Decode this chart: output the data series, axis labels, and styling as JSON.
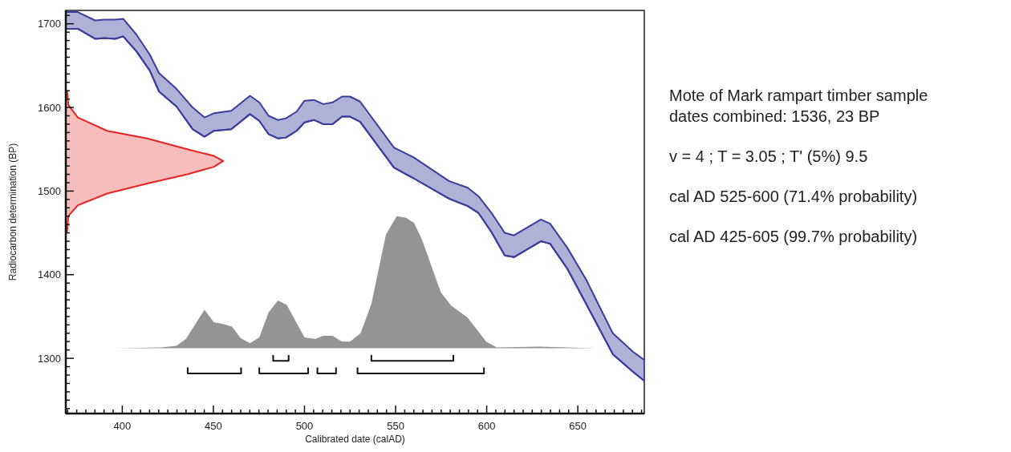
{
  "chart_data": {
    "type": "line",
    "xlabel": "Calibrated date (calAD)",
    "ylabel": "Radiocarbon determination (BP)",
    "xlim": [
      369,
      686.5
    ],
    "ylim": [
      1234,
      1716
    ],
    "xticks": [
      {
        "value": 370,
        "label": null
      },
      {
        "value": 375,
        "label": null
      },
      {
        "value": 380,
        "label": null
      },
      {
        "value": 385,
        "label": null
      },
      {
        "value": 390,
        "label": null
      },
      {
        "value": 395,
        "label": null
      },
      400,
      {
        "value": 405,
        "label": null
      },
      {
        "value": 410,
        "label": null
      },
      {
        "value": 415,
        "label": null
      },
      {
        "value": 420,
        "label": null
      },
      {
        "value": 425,
        "label": null
      },
      {
        "value": 430,
        "label": null
      },
      {
        "value": 435,
        "label": null
      },
      {
        "value": 440,
        "label": null
      },
      {
        "value": 445,
        "label": null
      },
      450,
      {
        "value": 455,
        "label": null
      },
      {
        "value": 460,
        "label": null
      },
      {
        "value": 465,
        "label": null
      },
      {
        "value": 470,
        "label": null
      },
      {
        "value": 475,
        "label": null
      },
      {
        "value": 480,
        "label": null
      },
      {
        "value": 485,
        "label": null
      },
      {
        "value": 490,
        "label": null
      },
      {
        "value": 495,
        "label": null
      },
      500,
      {
        "value": 505,
        "label": null
      },
      {
        "value": 510,
        "label": null
      },
      {
        "value": 515,
        "label": null
      },
      {
        "value": 520,
        "label": null
      },
      {
        "value": 525,
        "label": null
      },
      {
        "value": 530,
        "label": null
      },
      {
        "value": 535,
        "label": null
      },
      {
        "value": 540,
        "label": null
      },
      {
        "value": 545,
        "label": null
      },
      550,
      {
        "value": 555,
        "label": null
      },
      {
        "value": 560,
        "label": null
      },
      {
        "value": 565,
        "label": null
      },
      {
        "value": 570,
        "label": null
      },
      {
        "value": 575,
        "label": null
      },
      {
        "value": 580,
        "label": null
      },
      {
        "value": 585,
        "label": null
      },
      {
        "value": 590,
        "label": null
      },
      {
        "value": 595,
        "label": null
      },
      600,
      {
        "value": 605,
        "label": null
      },
      {
        "value": 610,
        "label": null
      },
      {
        "value": 615,
        "label": null
      },
      {
        "value": 620,
        "label": null
      },
      {
        "value": 625,
        "label": null
      },
      {
        "value": 630,
        "label": null
      },
      {
        "value": 635,
        "label": null
      },
      {
        "value": 640,
        "label": null
      },
      {
        "value": 645,
        "label": null
      },
      650,
      {
        "value": 655,
        "label": null
      },
      {
        "value": 660,
        "label": null
      },
      {
        "value": 665,
        "label": null
      },
      {
        "value": 670,
        "label": null
      },
      {
        "value": 675,
        "label": null
      },
      {
        "value": 680,
        "label": null
      },
      {
        "value": 685,
        "label": null
      }
    ],
    "yticks": [
      {
        "value": 1240,
        "label": null
      },
      {
        "value": 1250,
        "label": null
      },
      {
        "value": 1260,
        "label": null
      },
      {
        "value": 1270,
        "label": null
      },
      {
        "value": 1280,
        "label": null
      },
      {
        "value": 1290,
        "label": null
      },
      1300,
      {
        "value": 1310,
        "label": null
      },
      {
        "value": 1320,
        "label": null
      },
      {
        "value": 1330,
        "label": null
      },
      {
        "value": 1340,
        "label": null
      },
      {
        "value": 1350,
        "label": null
      },
      {
        "value": 1360,
        "label": null
      },
      {
        "value": 1370,
        "label": null
      },
      {
        "value": 1380,
        "label": null
      },
      {
        "value": 1390,
        "label": null
      },
      1400,
      {
        "value": 1410,
        "label": null
      },
      {
        "value": 1420,
        "label": null
      },
      {
        "value": 1430,
        "label": null
      },
      {
        "value": 1440,
        "label": null
      },
      {
        "value": 1450,
        "label": null
      },
      {
        "value": 1460,
        "label": null
      },
      {
        "value": 1470,
        "label": null
      },
      {
        "value": 1480,
        "label": null
      },
      {
        "value": 1490,
        "label": null
      },
      1500,
      {
        "value": 1510,
        "label": null
      },
      {
        "value": 1520,
        "label": null
      },
      {
        "value": 1530,
        "label": null
      },
      {
        "value": 1540,
        "label": null
      },
      {
        "value": 1550,
        "label": null
      },
      {
        "value": 1560,
        "label": null
      },
      {
        "value": 1570,
        "label": null
      },
      {
        "value": 1580,
        "label": null
      },
      {
        "value": 1590,
        "label": null
      },
      1600,
      {
        "value": 1610,
        "label": null
      },
      {
        "value": 1620,
        "label": null
      },
      {
        "value": 1630,
        "label": null
      },
      {
        "value": 1640,
        "label": null
      },
      {
        "value": 1650,
        "label": null
      },
      {
        "value": 1660,
        "label": null
      },
      {
        "value": 1670,
        "label": null
      },
      {
        "value": 1680,
        "label": null
      },
      {
        "value": 1690,
        "label": null
      },
      1700,
      {
        "value": 1710,
        "label": null
      }
    ],
    "grid": false,
    "series": [
      {
        "color": "#3a3d9c",
        "x": [
          369,
          375.6,
          385.1,
          390.2,
          396.1,
          400.5,
          407.8,
          415.1,
          420.2,
          429.8,
          438.6,
          445.1,
          450.3,
          459.8,
          470.1,
          475.2,
          480.3,
          485.4,
          489.8,
          495.7,
          500,
          505.2,
          510.3,
          515.4,
          520.6,
          525,
          530.5,
          549.1,
          560.1,
          579.3,
          589.6,
          595.4,
          602.6,
          609.9,
          615,
          629.7,
          634.8,
          644.3,
          654.6,
          669.2,
          680.2,
          686.5
        ],
        "upper": [
          1714,
          1714,
          1704,
          1705,
          1705,
          1706,
          1687,
          1663,
          1641,
          1622,
          1600,
          1588,
          1593,
          1596,
          1614,
          1606,
          1590,
          1585,
          1587,
          1595,
          1608,
          1609,
          1604,
          1606,
          1613,
          1613,
          1607,
          1552,
          1540,
          1512,
          1504,
          1494,
          1474,
          1450,
          1447,
          1466,
          1461,
          1432,
          1394,
          1330,
          1308,
          1298
        ],
        "lower": [
          1694,
          1694,
          1682,
          1683,
          1682,
          1685,
          1667,
          1644,
          1619,
          1601,
          1574,
          1565,
          1572,
          1574,
          1592,
          1584,
          1568,
          1563,
          1564,
          1572,
          1582,
          1585,
          1580,
          1580,
          1589,
          1589,
          1583,
          1528,
          1515,
          1491,
          1482,
          1474,
          1451,
          1423,
          1421,
          1440,
          1437,
          1407,
          1365,
          1305,
          1284,
          1273
        ],
        "values": [
          1694,
          1694,
          1682,
          1683,
          1682,
          1685,
          1667,
          1644,
          1619,
          1601,
          1574,
          1565,
          1572,
          1574,
          1592,
          1584,
          1568,
          1563,
          1564,
          1572,
          1582,
          1585,
          1580,
          1580,
          1589,
          1589,
          1583,
          1528,
          1515,
          1491,
          1482,
          1474,
          1451,
          1423,
          1421,
          1440,
          1437,
          1407,
          1365,
          1305,
          1284,
          1273
        ]
      },
      {
        "type": "area",
        "color": "#e52420",
        "x": [
          369.7,
          370.4,
          375.6,
          391.7,
          413.7,
          435.7,
          450.3,
          455.4,
          450.3,
          435.7,
          413.7,
          391.7,
          375.6,
          370.4,
          369.7
        ],
        "values": [
          1620,
          1603,
          1588,
          1572,
          1563,
          1550,
          1542,
          1536,
          1529,
          1520,
          1509,
          1497,
          1483,
          1470,
          1451
        ]
      },
      {
        "type": "area",
        "color": "#939496",
        "x": [
          395.8,
          421,
          429.8,
          434.9,
          445.1,
          450.3,
          455.4,
          460.2,
          465,
          470.1,
          475.2,
          480.3,
          485.4,
          490.2,
          500,
          505.9,
          510.3,
          515.4,
          520.6,
          525,
          530.8,
          536.7,
          544.7,
          550.6,
          555.7,
          560.1,
          564.5,
          574.8,
          580.6,
          589.4,
          599.7,
          605.5,
          628.9,
          659.7
        ],
        "values": [
          1312,
          1313,
          1315,
          1323,
          1358,
          1343,
          1341,
          1338,
          1324,
          1318,
          1325,
          1355,
          1369,
          1364,
          1325,
          1323,
          1327,
          1327,
          1320,
          1320,
          1330,
          1365,
          1448,
          1470,
          1468,
          1462,
          1442,
          1379,
          1363,
          1349,
          1320,
          1313,
          1314,
          1312
        ]
      },
      {
        "color": "#111111",
        "x": [
          482.8,
          482.8,
          491.3,
          491.3
        ],
        "values": [
          1304,
          1297,
          1297,
          1304
        ]
      },
      {
        "color": "#111111",
        "x": [
          536.7,
          536.7,
          581.7,
          581.7
        ],
        "values": [
          1304,
          1297,
          1297,
          1304
        ]
      },
      {
        "color": "#111111",
        "x": [
          435.9,
          435.9,
          465.2,
          465.2
        ],
        "values": [
          1289,
          1282,
          1282,
          1289
        ]
      },
      {
        "color": "#111111",
        "x": [
          475.2,
          475.2,
          502,
          502
        ],
        "values": [
          1289,
          1282,
          1282,
          1289
        ]
      },
      {
        "color": "#111111",
        "x": [
          507.1,
          507.1,
          517.3,
          517.3
        ],
        "values": [
          1289,
          1282,
          1282,
          1289
        ]
      },
      {
        "color": "#111111",
        "x": [
          529.1,
          529.1,
          598.5,
          598.5
        ],
        "values": [
          1289,
          1282,
          1282,
          1289
        ]
      }
    ],
    "annotations": [
      "Mote of Mark rampart timber sample dates combined: 1536, 23 BP",
      "v = 4 ; T = 3.05 ; T' (5%) 9.5",
      "cal AD 525-600 (71.4% probability)",
      "cal AD 425-605 (99.7% probability)"
    ]
  }
}
